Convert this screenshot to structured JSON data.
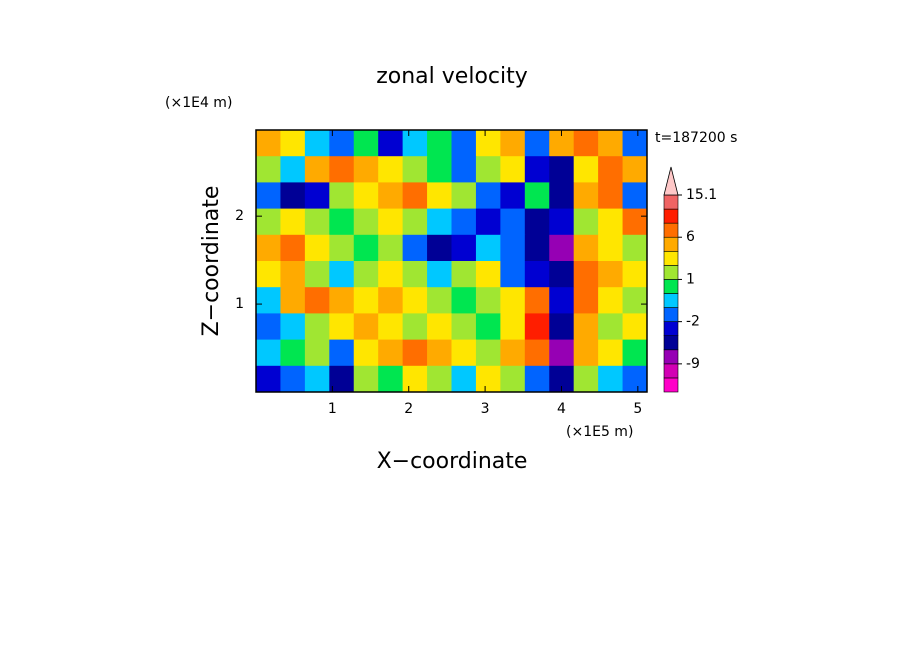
{
  "chart_data": {
    "type": "contour",
    "title": "zonal velocity",
    "x_label": "X−coordinate",
    "y_label": "Z−coordinate",
    "x_unit": "(×1E5 m)",
    "y_unit": "(×1E4 m)",
    "annotation": "t=187200 s",
    "xlim": [
      0,
      5.12
    ],
    "ylim": [
      0,
      2.98
    ],
    "xticks": [
      1,
      2,
      3,
      4,
      5
    ],
    "yticks": [
      1,
      2
    ],
    "z": [
      [
        4,
        2,
        -1,
        -2,
        0,
        -4,
        -1,
        0,
        -2,
        2,
        4,
        -2,
        4,
        6,
        4,
        -2
      ],
      [
        1,
        -1,
        4,
        6,
        4,
        2,
        1,
        0,
        -2,
        1,
        2,
        -4,
        -6,
        2,
        6,
        4
      ],
      [
        -2,
        -6,
        -4,
        1,
        2,
        4,
        6,
        2,
        1,
        -2,
        -4,
        0,
        -6,
        4,
        6,
        -2
      ],
      [
        1,
        2,
        1,
        0,
        1,
        2,
        1,
        -1,
        -2,
        -4,
        -2,
        -6,
        -4,
        1,
        2,
        6
      ],
      [
        4,
        6,
        2,
        1,
        0,
        1,
        -2,
        -6,
        -4,
        -1,
        -2,
        -6,
        -9,
        4,
        2,
        1
      ],
      [
        2,
        4,
        1,
        -1,
        1,
        2,
        1,
        -1,
        1,
        2,
        -2,
        -4,
        -6,
        6,
        4,
        2
      ],
      [
        -1,
        4,
        6,
        4,
        2,
        4,
        2,
        1,
        0,
        1,
        2,
        6,
        -4,
        6,
        2,
        1
      ],
      [
        -2,
        -1,
        1,
        2,
        4,
        2,
        1,
        2,
        1,
        0,
        2,
        9,
        -6,
        4,
        1,
        2
      ],
      [
        -1,
        0,
        1,
        -2,
        2,
        4,
        6,
        4,
        2,
        1,
        4,
        6,
        -9,
        4,
        2,
        0
      ],
      [
        -4,
        -2,
        -1,
        -6,
        1,
        0,
        2,
        1,
        -1,
        2,
        1,
        -2,
        -6,
        1,
        -1,
        -2
      ]
    ],
    "levels": [
      -12,
      -9,
      -6,
      -4,
      -2,
      -1,
      0,
      1,
      2,
      4,
      6,
      9,
      12,
      15.1
    ],
    "colors": [
      "#ff00c8",
      "#d200b4",
      "#9600b4",
      "#000096",
      "#0000d2",
      "#0064ff",
      "#00c8ff",
      "#00e650",
      "#a0e632",
      "#ffe600",
      "#ffaa00",
      "#ff6e00",
      "#ff1e00",
      "#f06464",
      "#ffc8c8"
    ],
    "colorbar_ticks": [
      15.1,
      6,
      1,
      -2,
      -9
    ]
  }
}
